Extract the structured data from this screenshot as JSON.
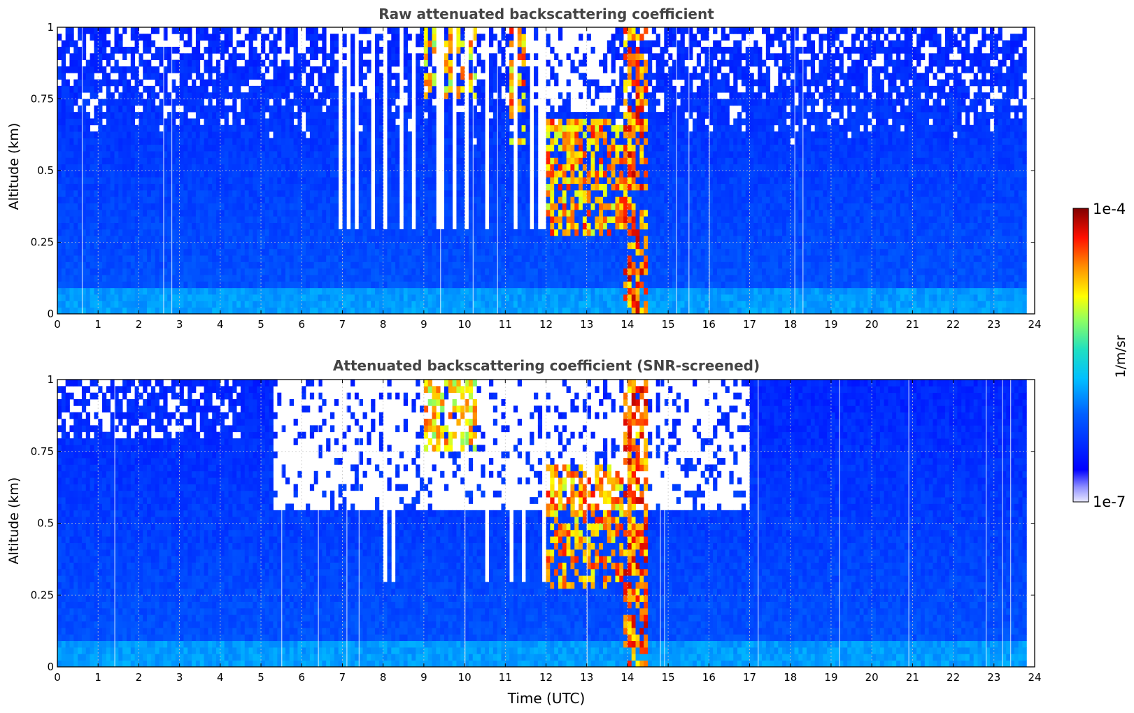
{
  "chart_data": [
    {
      "type": "heatmap",
      "title": "Raw attenuated backscattering coefficient",
      "xlabel": "",
      "ylabel": "Altitude (km)",
      "xlim": [
        0,
        24
      ],
      "ylim": [
        0,
        1
      ],
      "x_ticks": [
        "0",
        "1",
        "2",
        "3",
        "4",
        "5",
        "6",
        "7",
        "8",
        "9",
        "10",
        "11",
        "12",
        "13",
        "14",
        "15",
        "16",
        "17",
        "18",
        "19",
        "20",
        "21",
        "22",
        "23",
        "24"
      ],
      "y_ticks": [
        "0",
        "0.25",
        "0.5",
        "0.75",
        "1"
      ],
      "grid": true,
      "screened": false,
      "features": [
        {
          "t0": 12.0,
          "t1": 13.9,
          "z0": 0.28,
          "z1": 0.68,
          "level": 0.9
        },
        {
          "t0": 13.9,
          "t1": 14.5,
          "z0": 0.0,
          "z1": 1.0,
          "level": 0.95
        },
        {
          "t0": 9.0,
          "t1": 10.3,
          "z0": 0.75,
          "z1": 1.0,
          "level": 0.85
        },
        {
          "t0": 11.1,
          "t1": 11.5,
          "z0": 0.6,
          "z1": 1.0,
          "level": 0.9
        }
      ]
    },
    {
      "type": "heatmap",
      "title": "Attenuated backscattering coefficient (SNR-screened)",
      "xlabel": "Time (UTC)",
      "ylabel": "Altitude (km)",
      "xlim": [
        0,
        24
      ],
      "ylim": [
        0,
        1
      ],
      "x_ticks": [
        "0",
        "1",
        "2",
        "3",
        "4",
        "5",
        "6",
        "7",
        "8",
        "9",
        "10",
        "11",
        "12",
        "13",
        "14",
        "15",
        "16",
        "17",
        "18",
        "19",
        "20",
        "21",
        "22",
        "23",
        "24"
      ],
      "y_ticks": [
        "0",
        "0.25",
        "0.5",
        "0.75",
        "1"
      ],
      "grid": true,
      "screened": true,
      "features": [
        {
          "t0": 12.0,
          "t1": 13.9,
          "z0": 0.28,
          "z1": 0.7,
          "level": 0.9
        },
        {
          "t0": 13.9,
          "t1": 14.5,
          "z0": 0.0,
          "z1": 1.0,
          "level": 0.95
        },
        {
          "t0": 9.0,
          "t1": 10.3,
          "z0": 0.75,
          "z1": 1.0,
          "level": 0.85
        }
      ]
    }
  ],
  "colorbar": {
    "label": "1/m/sr",
    "max_label": "1e-4",
    "min_label": "1e-7",
    "min": 1e-07,
    "max": 0.0001,
    "scale": "log",
    "colormap": "jet"
  }
}
